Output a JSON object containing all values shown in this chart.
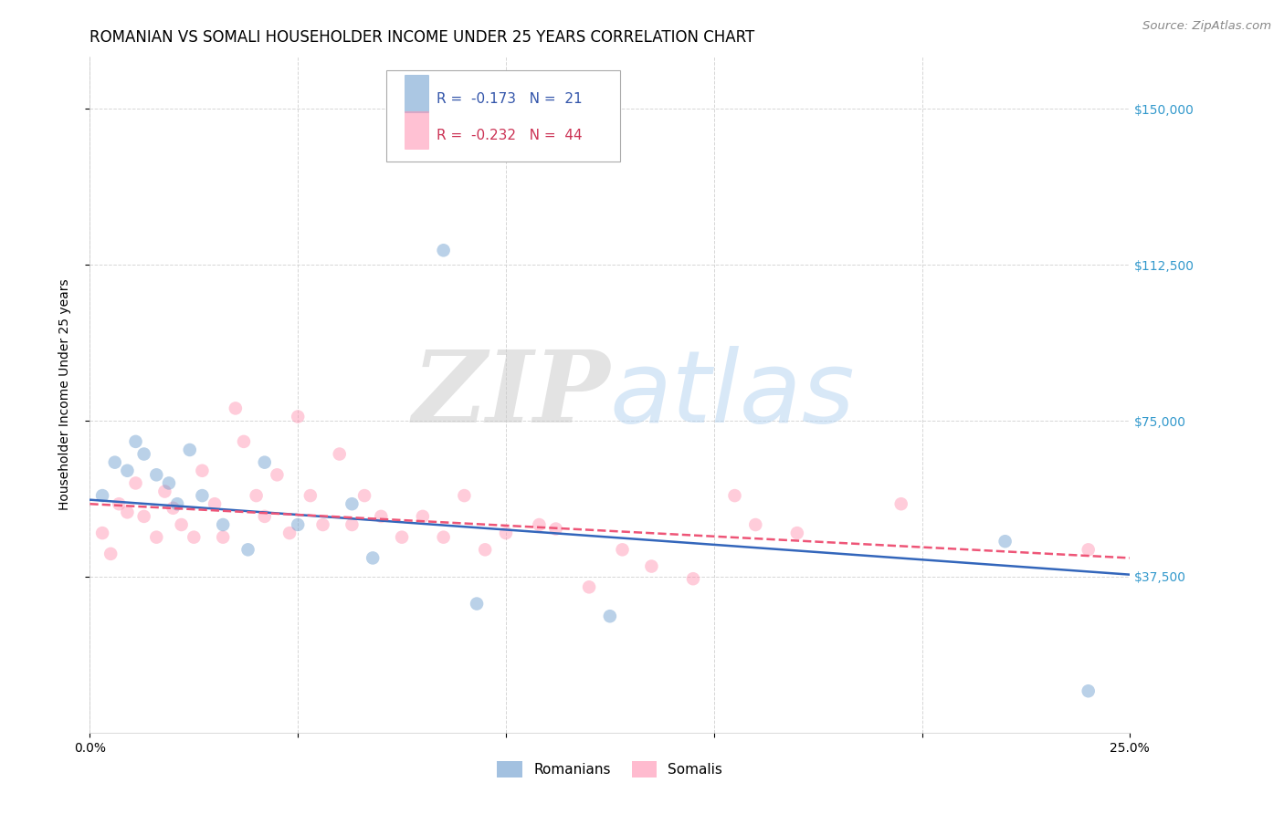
{
  "title": "ROMANIAN VS SOMALI HOUSEHOLDER INCOME UNDER 25 YEARS CORRELATION CHART",
  "source": "Source: ZipAtlas.com",
  "ylabel": "Householder Income Under 25 years",
  "xlim": [
    0.0,
    0.25
  ],
  "ylim": [
    0,
    162500
  ],
  "xticks": [
    0.0,
    0.05,
    0.1,
    0.15,
    0.2,
    0.25
  ],
  "xticklabels": [
    "0.0%",
    "",
    "",
    "",
    "",
    "25.0%"
  ],
  "yticks": [
    37500,
    75000,
    112500,
    150000
  ],
  "yticklabels": [
    "$37,500",
    "$75,000",
    "$112,500",
    "$150,000"
  ],
  "romanian_R": -0.173,
  "romanian_N": 21,
  "somali_R": -0.232,
  "somali_N": 44,
  "romanian_color": "#6699CC",
  "somali_color": "#FF8FAF",
  "romanian_line_color": "#3366BB",
  "somali_line_color": "#EE5577",
  "background_color": "#FFFFFF",
  "romanian_x": [
    0.003,
    0.006,
    0.009,
    0.011,
    0.013,
    0.016,
    0.019,
    0.021,
    0.024,
    0.027,
    0.032,
    0.038,
    0.042,
    0.05,
    0.063,
    0.068,
    0.085,
    0.093,
    0.125,
    0.22,
    0.24
  ],
  "romanian_y": [
    57000,
    65000,
    63000,
    70000,
    67000,
    62000,
    60000,
    55000,
    68000,
    57000,
    50000,
    44000,
    65000,
    50000,
    55000,
    42000,
    116000,
    31000,
    28000,
    46000,
    10000
  ],
  "somali_x": [
    0.003,
    0.005,
    0.007,
    0.009,
    0.011,
    0.013,
    0.016,
    0.018,
    0.02,
    0.022,
    0.025,
    0.027,
    0.03,
    0.032,
    0.035,
    0.037,
    0.04,
    0.042,
    0.045,
    0.048,
    0.05,
    0.053,
    0.056,
    0.06,
    0.063,
    0.066,
    0.07,
    0.075,
    0.08,
    0.085,
    0.09,
    0.095,
    0.1,
    0.108,
    0.112,
    0.12,
    0.128,
    0.135,
    0.145,
    0.155,
    0.16,
    0.17,
    0.195,
    0.24
  ],
  "somali_y": [
    48000,
    43000,
    55000,
    53000,
    60000,
    52000,
    47000,
    58000,
    54000,
    50000,
    47000,
    63000,
    55000,
    47000,
    78000,
    70000,
    57000,
    52000,
    62000,
    48000,
    76000,
    57000,
    50000,
    67000,
    50000,
    57000,
    52000,
    47000,
    52000,
    47000,
    57000,
    44000,
    48000,
    50000,
    49000,
    35000,
    44000,
    40000,
    37000,
    57000,
    50000,
    48000,
    55000,
    44000
  ],
  "title_fontsize": 12,
  "axis_label_fontsize": 10,
  "tick_fontsize": 10,
  "legend_fontsize": 11,
  "marker_size": 110,
  "marker_alpha": 0.45,
  "line_width": 1.8,
  "rom_line_y0": 56000,
  "rom_line_y1": 38000,
  "som_line_y0": 55000,
  "som_line_y1": 42000
}
